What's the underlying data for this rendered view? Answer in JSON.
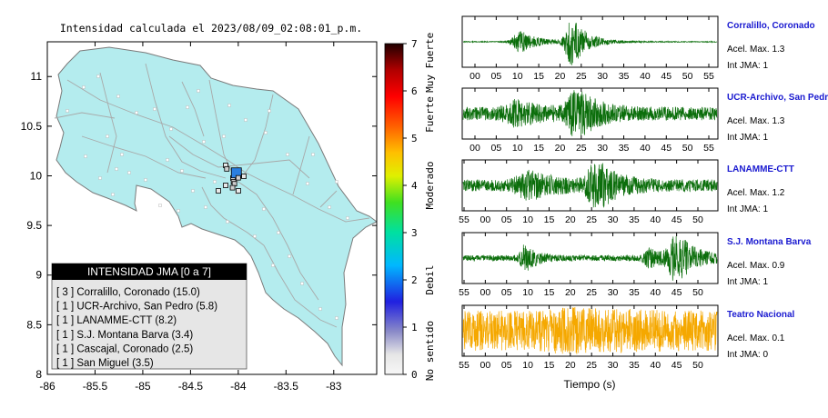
{
  "chart_data": [
    {
      "type": "map",
      "title": "Intensidad calculada el 2023/08/09_02:08:01_p.m.",
      "x_ticks": [
        "-86",
        "-85.5",
        "-85",
        "-84.5",
        "-84",
        "-83.5",
        "-83"
      ],
      "y_ticks": [
        "8",
        "8.5",
        "9",
        "9.5",
        "10",
        "10.5",
        "11"
      ],
      "xlim": [
        -86,
        -82.55
      ],
      "ylim": [
        8,
        11.35
      ],
      "colorbar": {
        "ticks": [
          "0",
          "1",
          "2",
          "3",
          "4",
          "5",
          "6",
          "7"
        ],
        "range": [
          0,
          7
        ],
        "labels": [
          "No sentido",
          "Debil",
          "Moderado",
          "Fuerte",
          "Muy Fuerte"
        ]
      },
      "legend": {
        "title": "INTENSIDAD JMA [0 a 7]",
        "items": [
          {
            "text": "[ 3 ]  Corralillo, Coronado (15.0)",
            "intensity": 3,
            "lon": -84.02,
            "lat": 10.03
          },
          {
            "text": "[ 1 ]  UCR-Archivo, San Pedro (5.8)",
            "intensity": 1,
            "lon": -84.05,
            "lat": 9.94
          },
          {
            "text": "[ 1 ]  LANAMME-CTT (8.2)",
            "intensity": 1,
            "lon": -84.04,
            "lat": 9.92
          },
          {
            "text": "[ 1 ]  S.J. Montana Barva (3.4)",
            "intensity": 1,
            "lon": -84.12,
            "lat": 10.07
          },
          {
            "text": "[ 1 ]  Cascajal, Coronado (2.5)",
            "intensity": 1,
            "lon": -84.0,
            "lat": 9.98
          },
          {
            "text": "[ 1 ]  San Miguel (3.5)",
            "intensity": 1,
            "lon": -84.06,
            "lat": 9.88
          }
        ]
      }
    },
    {
      "type": "line",
      "xlabel": "Tiempo (s)",
      "series": [
        {
          "name": "Corralillo, Coronado",
          "acel": "Acel. Max. 1.3",
          "int": "Int JMA: 1",
          "color": "#0b6e0b",
          "x_ticks": [
            "00",
            "05",
            "10",
            "15",
            "20",
            "25",
            "30",
            "35",
            "40",
            "45",
            "50",
            "55"
          ],
          "x_start": 0,
          "bursts": [
            {
              "t": 13,
              "a": 0.45,
              "w": 4
            },
            {
              "t": 24.5,
              "a": 1.0,
              "w": 3.5
            }
          ],
          "noise": 0.02
        },
        {
          "name": "UCR-Archivo, San Pedro",
          "acel": "Acel. Max. 1.3",
          "int": "Int JMA: 1",
          "color": "#0b6e0b",
          "x_ticks": [
            "00",
            "05",
            "10",
            "15",
            "20",
            "25",
            "30",
            "35",
            "40",
            "45",
            "50",
            "55"
          ],
          "x_start": 0,
          "bursts": [
            {
              "t": 25.5,
              "a": 1.0,
              "w": 4
            },
            {
              "t": 12,
              "a": 0.35,
              "w": 6
            }
          ],
          "noise": 0.28
        },
        {
          "name": "LANAMME-CTT",
          "acel": "Acel. Max. 1.2",
          "int": "Int JMA: 1",
          "color": "#0b6e0b",
          "x_ticks": [
            "55",
            "00",
            "05",
            "10",
            "15",
            "20",
            "25",
            "30",
            "35",
            "40",
            "45",
            "50"
          ],
          "x_start": 55,
          "bursts": [
            {
              "t": 30,
              "a": 1.0,
              "w": 4
            },
            {
              "t": 15,
              "a": 0.45,
              "w": 6
            }
          ],
          "noise": 0.25
        },
        {
          "name": "S.J. Montana Barva",
          "acel": "Acel. Max. 0.9",
          "int": "Int JMA: 1",
          "color": "#0b6e0b",
          "x_ticks": [
            "55",
            "00",
            "05",
            "10",
            "15",
            "20",
            "25",
            "30",
            "35",
            "40",
            "45",
            "50"
          ],
          "x_start": 55,
          "bursts": [
            {
              "t": 14,
              "a": 0.55,
              "w": 2.5
            },
            {
              "t": 48,
              "a": 1.0,
              "w": 4
            },
            {
              "t": 42,
              "a": 0.35,
              "w": 3
            }
          ],
          "noise": 0.12
        },
        {
          "name": "Teatro Nacional",
          "acel": "Acel. Max. 0.1",
          "int": "Int JMA: 0",
          "color": "#f5a800",
          "x_ticks": [
            "55",
            "00",
            "05",
            "10",
            "15",
            "20",
            "25",
            "30",
            "35",
            "40",
            "45",
            "50"
          ],
          "x_start": 55,
          "bursts": [
            {
              "t": 25,
              "a": 0.25,
              "w": 10
            }
          ],
          "noise": 0.85
        }
      ]
    }
  ]
}
